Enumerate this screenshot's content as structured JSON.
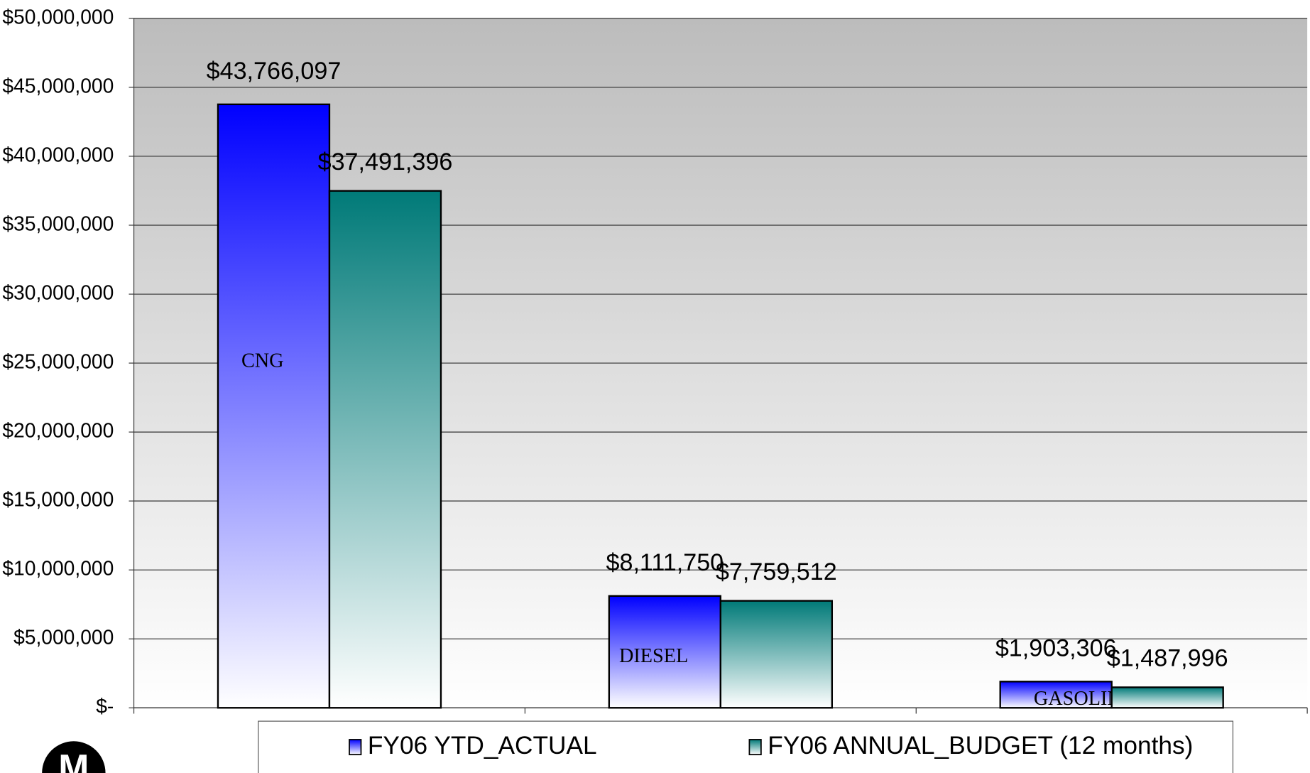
{
  "chart_data": {
    "type": "bar",
    "categories": [
      "CNG",
      "DIESEL",
      "GASOLINE"
    ],
    "series": [
      {
        "name": "FY06 YTD_ACTUAL",
        "color": "#0000ff",
        "values": [
          43766097,
          8111750,
          1903306
        ],
        "value_labels": [
          "$43,766,097",
          "$8,111,750",
          "$1,903,306"
        ]
      },
      {
        "name": "FY06 ANNUAL_BUDGET (12 months)",
        "color": "#007a78",
        "values": [
          37491396,
          7759512,
          1487996
        ],
        "value_labels": [
          "$37,491,396",
          "$7,759,512",
          "$1,487,996"
        ]
      }
    ],
    "ylim": [
      0,
      50000000
    ],
    "yticks": [
      {
        "value": 0,
        "label": "$-"
      },
      {
        "value": 5000000,
        "label": "$5,000,000"
      },
      {
        "value": 10000000,
        "label": "$10,000,000"
      },
      {
        "value": 15000000,
        "label": "$15,000,000"
      },
      {
        "value": 20000000,
        "label": "$20,000,000"
      },
      {
        "value": 25000000,
        "label": "$25,000,000"
      },
      {
        "value": 30000000,
        "label": "$30,000,000"
      },
      {
        "value": 35000000,
        "label": "$35,000,000"
      },
      {
        "value": 40000000,
        "label": "$40,000,000"
      },
      {
        "value": 45000000,
        "label": "$45,000,000"
      },
      {
        "value": 50000000,
        "label": "$50,000,000"
      }
    ],
    "grid": true,
    "legend": "bottom"
  }
}
